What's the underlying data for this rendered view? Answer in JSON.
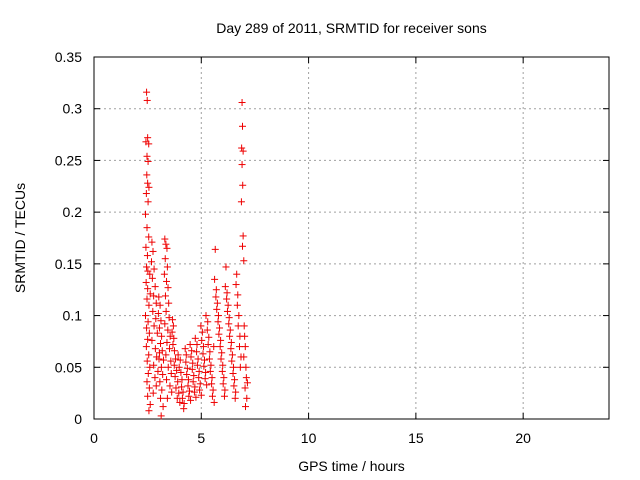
{
  "chart_data": {
    "type": "scatter",
    "title": "Day 289 of 2011, SRMTID for receiver sons",
    "xlabel": "GPS time / hours",
    "ylabel": "SRMTID / TECUs",
    "xlim": [
      0,
      24
    ],
    "ylim": [
      0,
      0.35
    ],
    "xticks": [
      0,
      5,
      10,
      15,
      20
    ],
    "xtick_labels": [
      "0",
      "5",
      "10",
      "15",
      "20"
    ],
    "yticks": [
      0,
      0.05,
      0.1,
      0.15,
      0.2,
      0.25,
      0.3,
      0.35
    ],
    "ytick_labels": [
      "0",
      "0.05",
      "0.1",
      "0.15",
      "0.2",
      "0.25",
      "0.3",
      "0.35"
    ],
    "grid": true,
    "marker": "plus",
    "color": "#ee0000",
    "series": [
      {
        "points": [
          [
            2.45,
            0.316
          ],
          [
            2.48,
            0.308
          ],
          [
            2.5,
            0.272
          ],
          [
            2.42,
            0.268
          ],
          [
            2.55,
            0.266
          ],
          [
            2.47,
            0.254
          ],
          [
            2.52,
            0.249
          ],
          [
            2.46,
            0.236
          ],
          [
            2.5,
            0.228
          ],
          [
            2.56,
            0.224
          ],
          [
            2.44,
            0.218
          ],
          [
            2.52,
            0.21
          ],
          [
            2.4,
            0.198
          ],
          [
            2.47,
            0.185
          ],
          [
            2.55,
            0.176
          ],
          [
            2.42,
            0.166
          ],
          [
            2.49,
            0.158
          ],
          [
            2.45,
            0.147
          ],
          [
            2.51,
            0.143
          ],
          [
            2.6,
            0.14
          ],
          [
            2.43,
            0.132
          ],
          [
            2.5,
            0.126
          ],
          [
            2.62,
            0.121
          ],
          [
            2.47,
            0.116
          ],
          [
            2.56,
            0.11
          ],
          [
            2.4,
            0.1
          ],
          [
            2.52,
            0.094
          ],
          [
            2.45,
            0.088
          ],
          [
            2.58,
            0.083
          ],
          [
            2.5,
            0.077
          ],
          [
            2.44,
            0.07
          ],
          [
            2.55,
            0.062
          ],
          [
            2.48,
            0.056
          ],
          [
            2.6,
            0.05
          ],
          [
            2.53,
            0.044
          ],
          [
            2.47,
            0.036
          ],
          [
            2.58,
            0.03
          ],
          [
            2.5,
            0.022
          ],
          [
            2.62,
            0.014
          ],
          [
            2.56,
            0.008
          ],
          [
            2.7,
            0.171
          ],
          [
            2.75,
            0.162
          ],
          [
            2.68,
            0.152
          ],
          [
            2.8,
            0.145
          ],
          [
            2.72,
            0.136
          ],
          [
            2.85,
            0.128
          ],
          [
            2.78,
            0.119
          ],
          [
            2.9,
            0.112
          ],
          [
            2.74,
            0.104
          ],
          [
            2.88,
            0.097
          ],
          [
            2.8,
            0.09
          ],
          [
            2.95,
            0.083
          ],
          [
            2.7,
            0.076
          ],
          [
            2.86,
            0.068
          ],
          [
            2.92,
            0.06
          ],
          [
            2.78,
            0.052
          ],
          [
            2.98,
            0.046
          ],
          [
            2.84,
            0.04
          ],
          [
            2.9,
            0.032
          ],
          [
            2.76,
            0.025
          ],
          [
            3.02,
            0.118
          ],
          [
            3.08,
            0.11
          ],
          [
            3.0,
            0.102
          ],
          [
            3.12,
            0.095
          ],
          [
            3.05,
            0.088
          ],
          [
            3.15,
            0.08
          ],
          [
            3.1,
            0.073
          ],
          [
            3.18,
            0.066
          ],
          [
            3.03,
            0.058
          ],
          [
            3.14,
            0.05
          ],
          [
            3.2,
            0.043
          ],
          [
            3.07,
            0.036
          ],
          [
            3.16,
            0.028
          ],
          [
            3.1,
            0.02
          ],
          [
            3.13,
            0.003
          ],
          [
            3.22,
            0.012
          ],
          [
            3.05,
            0.064
          ],
          [
            3.24,
            0.057
          ],
          [
            3.3,
            0.174
          ],
          [
            3.35,
            0.169
          ],
          [
            3.4,
            0.165
          ],
          [
            3.32,
            0.155
          ],
          [
            3.42,
            0.147
          ],
          [
            3.28,
            0.14
          ],
          [
            3.38,
            0.133
          ],
          [
            3.45,
            0.127
          ],
          [
            3.33,
            0.119
          ],
          [
            3.48,
            0.112
          ],
          [
            3.36,
            0.104
          ],
          [
            3.5,
            0.098
          ],
          [
            3.3,
            0.092
          ],
          [
            3.44,
            0.086
          ],
          [
            3.55,
            0.08
          ],
          [
            3.4,
            0.074
          ],
          [
            3.52,
            0.068
          ],
          [
            3.35,
            0.062
          ],
          [
            3.58,
            0.056
          ],
          [
            3.46,
            0.05
          ],
          [
            3.6,
            0.044
          ],
          [
            3.38,
            0.038
          ],
          [
            3.54,
            0.032
          ],
          [
            3.62,
            0.026
          ],
          [
            3.42,
            0.02
          ],
          [
            3.66,
            0.096
          ],
          [
            3.7,
            0.09
          ],
          [
            3.64,
            0.084
          ],
          [
            3.72,
            0.078
          ],
          [
            3.68,
            0.072
          ],
          [
            3.75,
            0.066
          ],
          [
            3.8,
            0.058
          ],
          [
            3.74,
            0.052
          ],
          [
            3.85,
            0.047
          ],
          [
            3.78,
            0.041
          ],
          [
            3.9,
            0.036
          ],
          [
            3.82,
            0.03
          ],
          [
            3.95,
            0.025
          ],
          [
            3.88,
            0.02
          ],
          [
            4.0,
            0.016
          ],
          [
            3.92,
            0.062
          ],
          [
            4.02,
            0.057
          ],
          [
            3.97,
            0.05
          ],
          [
            4.05,
            0.045
          ],
          [
            4.1,
            0.038
          ],
          [
            4.08,
            0.031
          ],
          [
            4.15,
            0.026
          ],
          [
            4.12,
            0.02
          ],
          [
            4.2,
            0.015
          ],
          [
            4.18,
            0.01
          ],
          [
            4.25,
            0.068
          ],
          [
            4.3,
            0.062
          ],
          [
            4.28,
            0.055
          ],
          [
            4.35,
            0.049
          ],
          [
            4.32,
            0.043
          ],
          [
            4.4,
            0.038
          ],
          [
            4.38,
            0.032
          ],
          [
            4.45,
            0.027
          ],
          [
            4.42,
            0.022
          ],
          [
            4.5,
            0.018
          ],
          [
            4.48,
            0.072
          ],
          [
            4.55,
            0.066
          ],
          [
            4.52,
            0.06
          ],
          [
            4.6,
            0.054
          ],
          [
            4.58,
            0.048
          ],
          [
            4.65,
            0.042
          ],
          [
            4.62,
            0.036
          ],
          [
            4.7,
            0.031
          ],
          [
            4.68,
            0.026
          ],
          [
            4.75,
            0.021
          ],
          [
            4.72,
            0.078
          ],
          [
            4.8,
            0.072
          ],
          [
            4.78,
            0.065
          ],
          [
            4.85,
            0.058
          ],
          [
            4.82,
            0.052
          ],
          [
            4.9,
            0.046
          ],
          [
            4.88,
            0.04
          ],
          [
            4.95,
            0.034
          ],
          [
            4.92,
            0.028
          ],
          [
            5.0,
            0.023
          ],
          [
            4.98,
            0.09
          ],
          [
            5.05,
            0.084
          ],
          [
            5.02,
            0.076
          ],
          [
            5.1,
            0.07
          ],
          [
            5.08,
            0.063
          ],
          [
            5.15,
            0.057
          ],
          [
            5.12,
            0.051
          ],
          [
            5.2,
            0.045
          ],
          [
            5.18,
            0.039
          ],
          [
            5.25,
            0.033
          ],
          [
            5.22,
            0.1
          ],
          [
            5.3,
            0.094
          ],
          [
            5.28,
            0.086
          ],
          [
            5.35,
            0.079
          ],
          [
            5.32,
            0.072
          ],
          [
            5.4,
            0.065
          ],
          [
            5.38,
            0.058
          ],
          [
            5.45,
            0.052
          ],
          [
            5.42,
            0.046
          ],
          [
            5.5,
            0.04
          ],
          [
            5.48,
            0.034
          ],
          [
            5.55,
            0.028
          ],
          [
            5.52,
            0.022
          ],
          [
            5.6,
            0.016
          ],
          [
            5.58,
            0.07
          ],
          [
            5.65,
            0.164
          ],
          [
            5.62,
            0.135
          ],
          [
            5.7,
            0.125
          ],
          [
            5.68,
            0.118
          ],
          [
            5.75,
            0.112
          ],
          [
            5.72,
            0.106
          ],
          [
            5.8,
            0.1
          ],
          [
            5.78,
            0.094
          ],
          [
            5.85,
            0.088
          ],
          [
            5.82,
            0.082
          ],
          [
            5.9,
            0.076
          ],
          [
            5.88,
            0.07
          ],
          [
            5.95,
            0.064
          ],
          [
            5.92,
            0.058
          ],
          [
            6.0,
            0.052
          ],
          [
            5.98,
            0.046
          ],
          [
            6.05,
            0.04
          ],
          [
            6.02,
            0.034
          ],
          [
            6.1,
            0.028
          ],
          [
            6.08,
            0.022
          ],
          [
            6.15,
            0.147
          ],
          [
            6.12,
            0.128
          ],
          [
            6.2,
            0.122
          ],
          [
            6.18,
            0.116
          ],
          [
            6.25,
            0.11
          ],
          [
            6.22,
            0.104
          ],
          [
            6.3,
            0.098
          ],
          [
            6.28,
            0.092
          ],
          [
            6.35,
            0.086
          ],
          [
            6.32,
            0.08
          ],
          [
            6.4,
            0.074
          ],
          [
            6.38,
            0.068
          ],
          [
            6.45,
            0.062
          ],
          [
            6.42,
            0.056
          ],
          [
            6.5,
            0.05
          ],
          [
            6.48,
            0.044
          ],
          [
            6.55,
            0.038
          ],
          [
            6.52,
            0.032
          ],
          [
            6.6,
            0.026
          ],
          [
            6.58,
            0.02
          ],
          [
            6.65,
            0.14
          ],
          [
            6.62,
            0.13
          ],
          [
            6.7,
            0.12
          ],
          [
            6.68,
            0.11
          ],
          [
            6.75,
            0.1
          ],
          [
            6.72,
            0.09
          ],
          [
            6.8,
            0.08
          ],
          [
            6.78,
            0.07
          ],
          [
            6.85,
            0.06
          ],
          [
            6.82,
            0.05
          ],
          [
            6.9,
            0.306
          ],
          [
            6.92,
            0.283
          ],
          [
            6.88,
            0.262
          ],
          [
            6.95,
            0.259
          ],
          [
            6.9,
            0.246
          ],
          [
            6.93,
            0.226
          ],
          [
            6.87,
            0.21
          ],
          [
            6.95,
            0.177
          ],
          [
            6.92,
            0.167
          ],
          [
            6.98,
            0.153
          ],
          [
            7.0,
            0.09
          ],
          [
            7.02,
            0.08
          ],
          [
            7.05,
            0.07
          ],
          [
            6.98,
            0.06
          ],
          [
            7.08,
            0.05
          ],
          [
            7.1,
            0.04
          ],
          [
            7.04,
            0.03
          ],
          [
            7.12,
            0.02
          ],
          [
            7.06,
            0.012
          ],
          [
            7.15,
            0.035
          ]
        ]
      }
    ]
  }
}
